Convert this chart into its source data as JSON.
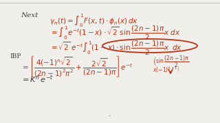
{
  "bg_color": "#f0efeb",
  "text_color": "#3a3a3a",
  "red_color": "#c03010",
  "figsize": [
    3.2,
    1.8
  ],
  "dpi": 100
}
